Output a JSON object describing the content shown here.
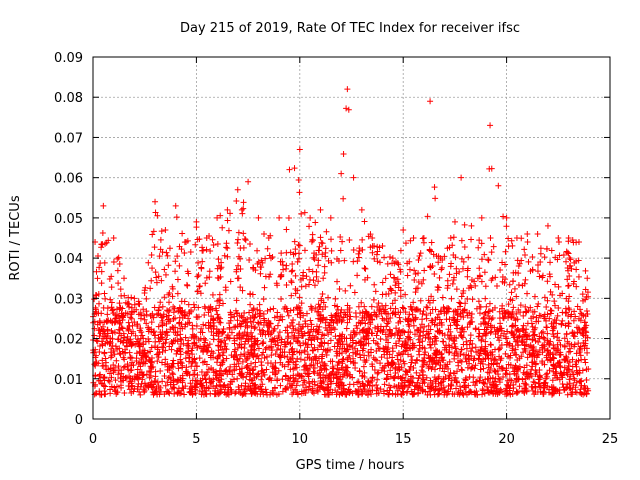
{
  "chart_data": {
    "type": "scatter",
    "title": "Day 215 of 2019, Rate Of TEC Index for receiver ifsc",
    "xlabel": "GPS time / hours",
    "ylabel": "ROTI / TECUs",
    "xlim": [
      0,
      25
    ],
    "ylim": [
      0,
      0.09
    ],
    "x_ticks": [
      "0",
      "5",
      "10",
      "15",
      "20",
      "25"
    ],
    "y_ticks": [
      "0",
      "0.01",
      "0.02",
      "0.03",
      "0.04",
      "0.05",
      "0.06",
      "0.07",
      "0.08",
      "0.09"
    ],
    "grid": true,
    "marker": "+",
    "color": "#ff0000",
    "series": [
      {
        "name": "ROTI",
        "envelope_note": "Dense scatter of thousands of samples; upper envelope (hour, ROTI) listed below, bulk lies between 0.005 and 0.03.",
        "upper_envelope": [
          [
            0.1,
            0.044
          ],
          [
            0.5,
            0.053
          ],
          [
            1.0,
            0.045
          ],
          [
            1.5,
            0.035
          ],
          [
            2.0,
            0.03
          ],
          [
            2.5,
            0.032
          ],
          [
            3.0,
            0.054
          ],
          [
            3.5,
            0.047
          ],
          [
            4.0,
            0.053
          ],
          [
            4.5,
            0.044
          ],
          [
            5.0,
            0.049
          ],
          [
            5.5,
            0.045
          ],
          [
            6.0,
            0.05
          ],
          [
            6.5,
            0.052
          ],
          [
            7.0,
            0.057
          ],
          [
            7.5,
            0.059
          ],
          [
            8.0,
            0.05
          ],
          [
            8.5,
            0.045
          ],
          [
            9.0,
            0.05
          ],
          [
            9.5,
            0.062
          ],
          [
            10.0,
            0.067
          ],
          [
            10.5,
            0.05
          ],
          [
            11.0,
            0.052
          ],
          [
            11.5,
            0.05
          ],
          [
            12.0,
            0.061
          ],
          [
            12.3,
            0.082
          ],
          [
            12.6,
            0.06
          ],
          [
            13.0,
            0.052
          ],
          [
            13.5,
            0.045
          ],
          [
            14.0,
            0.043
          ],
          [
            14.5,
            0.04
          ],
          [
            15.0,
            0.047
          ],
          [
            15.5,
            0.045
          ],
          [
            16.0,
            0.045
          ],
          [
            16.3,
            0.079
          ],
          [
            16.8,
            0.04
          ],
          [
            17.3,
            0.045
          ],
          [
            17.8,
            0.06
          ],
          [
            18.3,
            0.048
          ],
          [
            18.8,
            0.05
          ],
          [
            19.2,
            0.073
          ],
          [
            19.6,
            0.058
          ],
          [
            20.0,
            0.05
          ],
          [
            20.5,
            0.045
          ],
          [
            21.0,
            0.046
          ],
          [
            21.5,
            0.046
          ],
          [
            22.0,
            0.048
          ],
          [
            22.5,
            0.045
          ],
          [
            23.0,
            0.045
          ],
          [
            23.5,
            0.044
          ],
          [
            23.9,
            0.035
          ]
        ]
      }
    ]
  }
}
